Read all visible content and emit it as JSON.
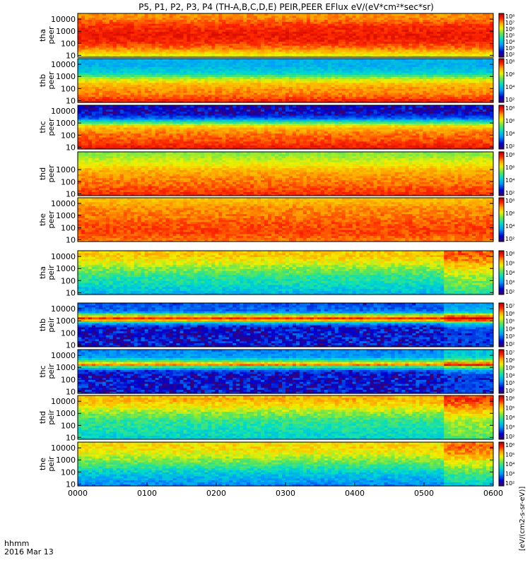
{
  "title": "P5, P1, P2, P3, P4 (TH-A,B,C,D,E) PEIR,PEER EFlux eV/(eV*cm²*sec*sr)",
  "time_axis": {
    "unit_label": "hhmm",
    "date_label": "2016 Mar 13",
    "ticks": [
      "0000",
      "0100",
      "0200",
      "0300",
      "0400",
      "0500",
      "0600"
    ]
  },
  "colorbar_unit": "[eV/(cm2-s-sr-eV)]",
  "chart_data": [
    {
      "type": "heatmap",
      "probe": "tha",
      "species": "peer",
      "ylabel": [
        "tha",
        "peer"
      ],
      "yscale": "log",
      "ylim": [
        7,
        30000
      ],
      "yticks": [
        "10000",
        "1000",
        "100",
        "10"
      ],
      "colorbar_ticks": [
        "10⁸",
        "10⁷",
        "10⁶",
        "10⁵",
        "10⁴",
        "10³",
        "10²"
      ],
      "zlim": [
        100,
        100000000
      ],
      "profile": [
        [
          10,
          6.0
        ],
        [
          40,
          7.0
        ],
        [
          150,
          7.5
        ],
        [
          600,
          7.6
        ],
        [
          3000,
          7.4
        ],
        [
          10000,
          7.0
        ],
        [
          30000,
          6.8
        ]
      ]
    },
    {
      "type": "heatmap",
      "probe": "thb",
      "species": "peer",
      "ylabel": [
        "thb",
        "peer"
      ],
      "yscale": "log",
      "ylim": [
        7,
        30000
      ],
      "yticks": [
        "10000",
        "1000",
        "100",
        "10"
      ],
      "colorbar_ticks": [
        "10⁸",
        "10⁶",
        "10⁴",
        "10²"
      ],
      "zlim": [
        100,
        100000000
      ],
      "profile": [
        [
          10,
          7.5
        ],
        [
          30,
          7.0
        ],
        [
          100,
          6.8
        ],
        [
          300,
          6.5
        ],
        [
          800,
          5.6
        ],
        [
          2000,
          4.4
        ],
        [
          8000,
          4.0
        ],
        [
          30000,
          4.0
        ]
      ]
    },
    {
      "type": "heatmap",
      "probe": "thc",
      "species": "peer",
      "ylabel": [
        "thc",
        "peer"
      ],
      "yscale": "log",
      "ylim": [
        7,
        30000
      ],
      "yticks": [
        "10000",
        "1000",
        "100",
        "10"
      ],
      "colorbar_ticks": [
        "10⁸",
        "10⁶",
        "10⁴",
        "10²"
      ],
      "zlim": [
        100,
        100000000
      ],
      "profile": [
        [
          10,
          7.6
        ],
        [
          40,
          7.2
        ],
        [
          150,
          7.0
        ],
        [
          500,
          6.5
        ],
        [
          1200,
          5.0
        ],
        [
          2500,
          3.4
        ],
        [
          8000,
          2.5
        ],
        [
          30000,
          2.4
        ]
      ]
    },
    {
      "type": "heatmap",
      "probe": "thd",
      "species": "peer",
      "ylabel": [
        "thd",
        "peer"
      ],
      "yscale": "log",
      "ylim": [
        7,
        30000
      ],
      "yticks": [
        "1000",
        "100",
        "10"
      ],
      "colorbar_ticks": [
        "10⁸",
        "10⁶",
        "10⁴",
        "10²"
      ],
      "zlim": [
        100,
        100000000
      ],
      "profile": [
        [
          10,
          7.4
        ],
        [
          50,
          7.1
        ],
        [
          200,
          6.9
        ],
        [
          1000,
          6.6
        ],
        [
          4000,
          6.0
        ],
        [
          15000,
          5.6
        ],
        [
          30000,
          5.5
        ]
      ]
    },
    {
      "type": "heatmap",
      "probe": "the",
      "species": "peer",
      "ylabel": [
        "the",
        "peer"
      ],
      "yscale": "log",
      "ylim": [
        7,
        30000
      ],
      "yticks": [
        "10000",
        "1000",
        "100",
        "10"
      ],
      "colorbar_ticks": [
        "10⁸",
        "10⁶",
        "10⁴",
        "10²"
      ],
      "zlim": [
        100,
        100000000
      ],
      "profile": [
        [
          10,
          7.0
        ],
        [
          40,
          7.3
        ],
        [
          200,
          7.2
        ],
        [
          1000,
          7.0
        ],
        [
          4000,
          6.9
        ],
        [
          15000,
          6.6
        ],
        [
          30000,
          6.5
        ]
      ]
    },
    {
      "type": "heatmap",
      "probe": "tha",
      "species": "peir",
      "ylabel": [
        "tha",
        "peir"
      ],
      "yscale": "log",
      "ylim": [
        7,
        30000
      ],
      "yticks": [
        "10000",
        "1000",
        "100",
        "10"
      ],
      "colorbar_ticks": [
        "10⁶",
        "10⁵",
        "10⁴",
        "10³",
        "10²"
      ],
      "zlim": [
        100,
        1000000
      ],
      "profile": [
        [
          10,
          3.4
        ],
        [
          50,
          3.7
        ],
        [
          200,
          3.9
        ],
        [
          1000,
          4.3
        ],
        [
          4000,
          4.7
        ],
        [
          15000,
          5.0
        ],
        [
          30000,
          4.9
        ]
      ]
    },
    {
      "type": "heatmap",
      "probe": "thb",
      "species": "peir",
      "ylabel": [
        "thb",
        "peir"
      ],
      "yscale": "log",
      "ylim": [
        7,
        30000
      ],
      "yticks": [
        "10000",
        "1000",
        "100",
        "10"
      ],
      "colorbar_ticks": [
        "10⁷",
        "10⁶",
        "10⁵",
        "10⁴",
        "10³",
        "10²"
      ],
      "zlim": [
        100,
        10000000
      ],
      "profile": [
        [
          10,
          2.4
        ],
        [
          100,
          2.4
        ],
        [
          300,
          2.6
        ],
        [
          700,
          3.6
        ],
        [
          1500,
          6.8
        ],
        [
          2500,
          5.8
        ],
        [
          6000,
          3.2
        ],
        [
          30000,
          3.0
        ]
      ]
    },
    {
      "type": "heatmap",
      "probe": "thc",
      "species": "peir",
      "ylabel": [
        "thc",
        "peir"
      ],
      "yscale": "log",
      "ylim": [
        7,
        30000
      ],
      "yticks": [
        "10000",
        "1000",
        "100",
        "10"
      ],
      "colorbar_ticks": [
        "10⁷",
        "10⁶",
        "10⁵",
        "10⁴",
        "10³",
        "10²"
      ],
      "zlim": [
        100,
        10000000
      ],
      "profile": [
        [
          10,
          2.4
        ],
        [
          200,
          2.4
        ],
        [
          600,
          3.0
        ],
        [
          1200,
          4.4
        ],
        [
          2000,
          6.8
        ],
        [
          3000,
          4.8
        ],
        [
          8000,
          3.5
        ],
        [
          30000,
          3.3
        ]
      ]
    },
    {
      "type": "heatmap",
      "probe": "thd",
      "species": "peir",
      "ylabel": [
        "thd",
        "peir"
      ],
      "yscale": "log",
      "ylim": [
        7,
        30000
      ],
      "yticks": [
        "10000",
        "1000",
        "100",
        "10"
      ],
      "colorbar_ticks": [
        "10⁶",
        "10⁵",
        "10⁴",
        "10³",
        "10²"
      ],
      "zlim": [
        100,
        1000000
      ],
      "profile": [
        [
          10,
          3.6
        ],
        [
          50,
          3.8
        ],
        [
          200,
          3.9
        ],
        [
          1000,
          4.3
        ],
        [
          4000,
          4.8
        ],
        [
          15000,
          5.1
        ],
        [
          30000,
          5.0
        ]
      ]
    },
    {
      "type": "heatmap",
      "probe": "the",
      "species": "peir",
      "ylabel": [
        "the",
        "peir"
      ],
      "yscale": "log",
      "ylim": [
        7,
        30000
      ],
      "yticks": [
        "10000",
        "1000",
        "100",
        "10"
      ],
      "colorbar_ticks": [
        "10⁶",
        "10⁵",
        "10⁴",
        "10³",
        "10²"
      ],
      "zlim": [
        100,
        1000000
      ],
      "profile": [
        [
          10,
          3.1
        ],
        [
          50,
          3.4
        ],
        [
          200,
          3.8
        ],
        [
          1000,
          4.3
        ],
        [
          4000,
          4.7
        ],
        [
          15000,
          4.9
        ],
        [
          30000,
          4.8
        ]
      ]
    }
  ]
}
